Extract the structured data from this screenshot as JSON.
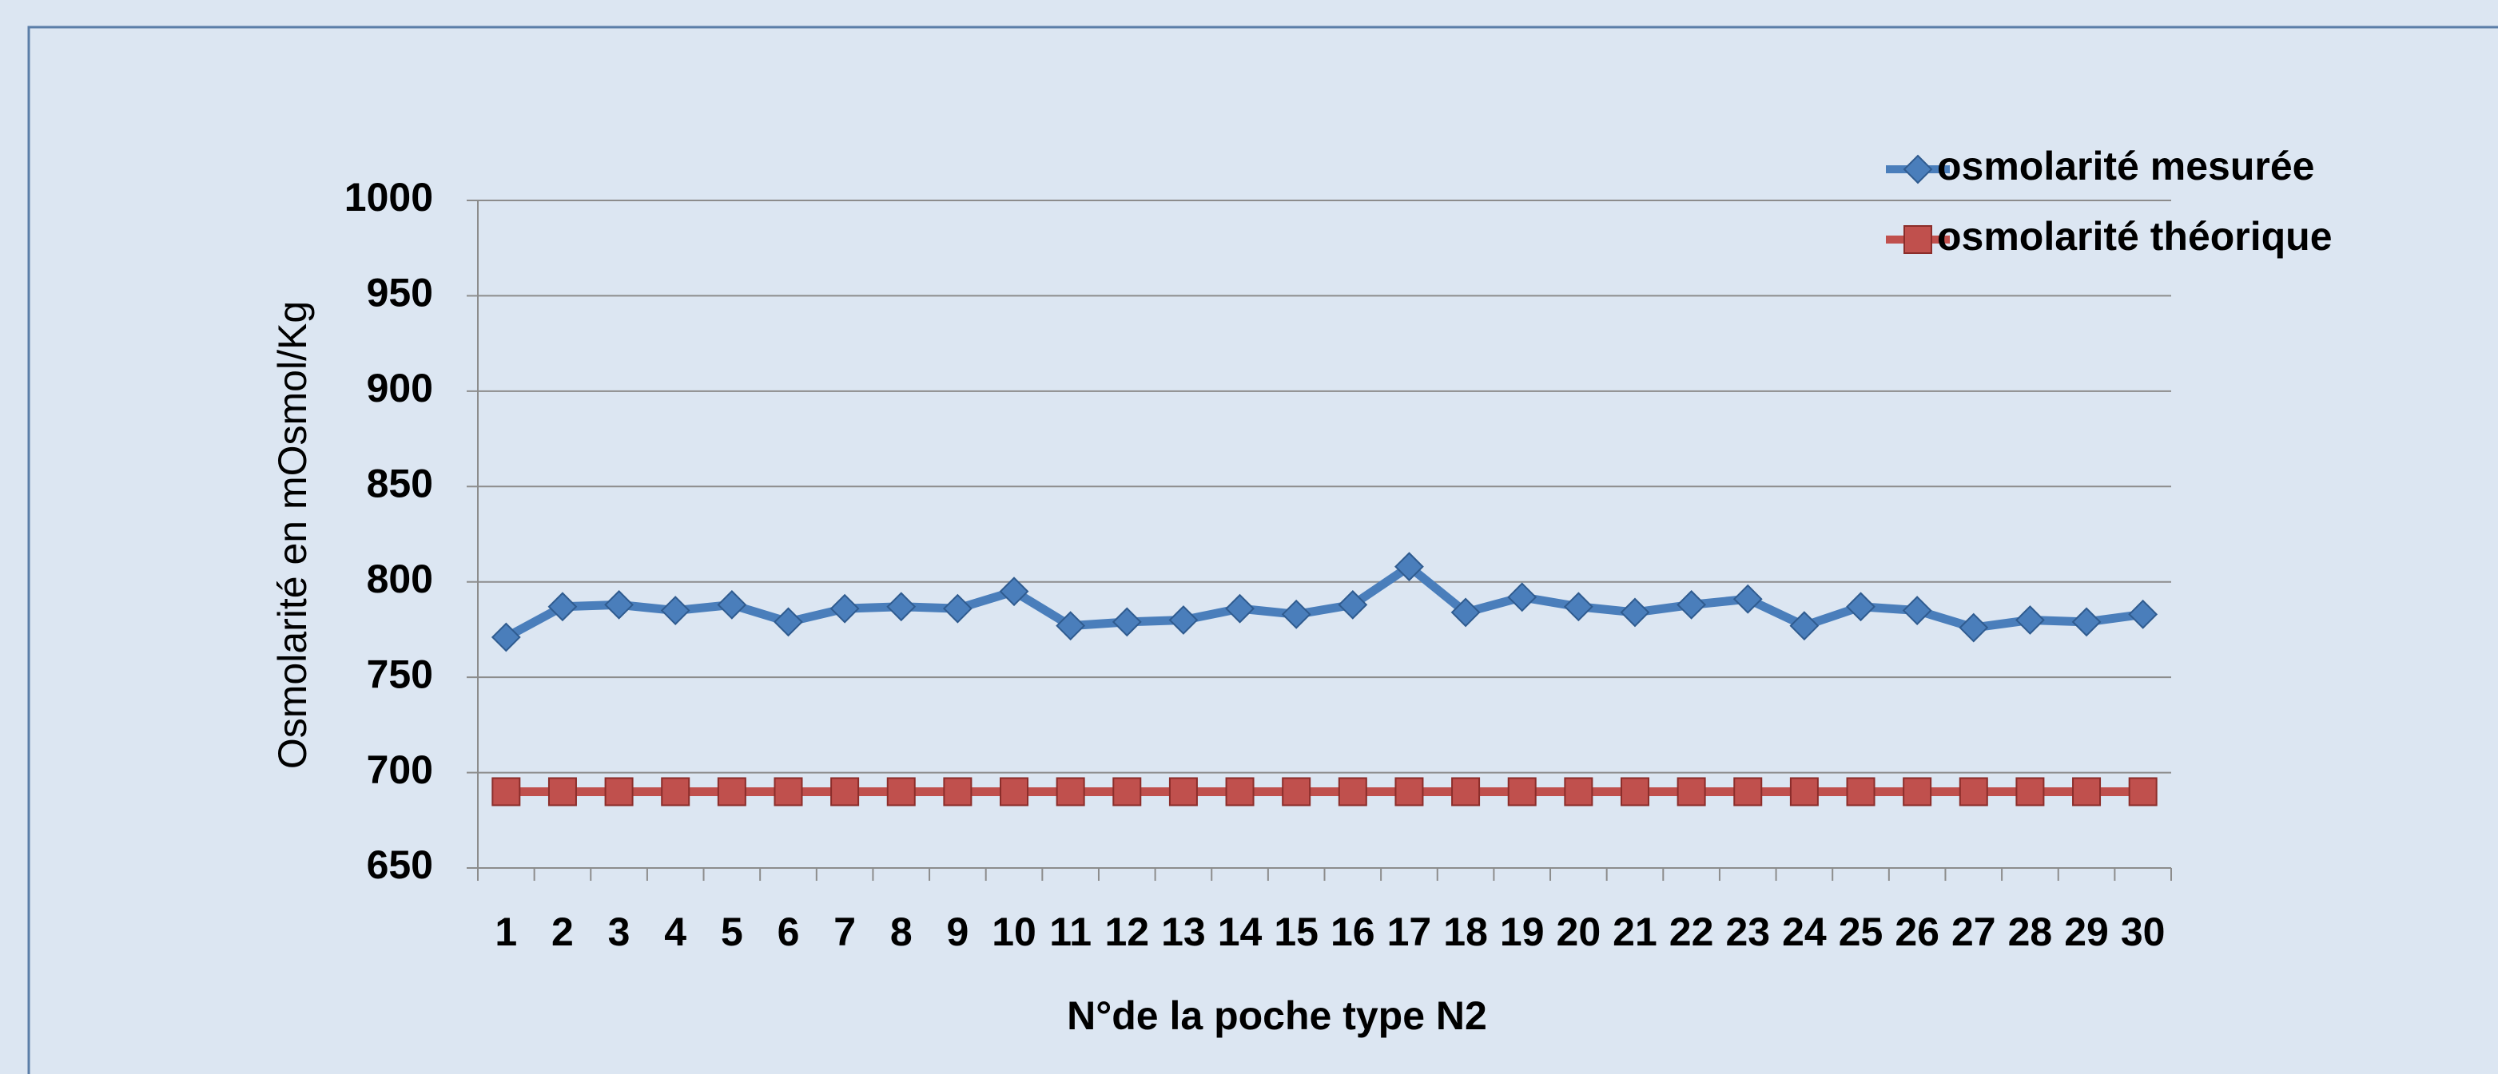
{
  "chart_data": {
    "type": "line",
    "x_label": "N°de la poche type N2",
    "y_label": "Osmolarité en mOsmol/Kg",
    "categories": [
      "1",
      "2",
      "3",
      "4",
      "5",
      "6",
      "7",
      "8",
      "9",
      "10",
      "11",
      "12",
      "13",
      "14",
      "15",
      "16",
      "17",
      "18",
      "19",
      "20",
      "21",
      "22",
      "23",
      "24",
      "25",
      "26",
      "27",
      "28",
      "29",
      "30"
    ],
    "series": [
      {
        "name": "osmolarité mesurée",
        "color": "#4a7ebb",
        "marker": "diamond",
        "values": [
          771,
          787,
          788,
          785,
          788,
          779,
          786,
          787,
          786,
          795,
          777,
          779,
          780,
          786,
          783,
          788,
          808,
          784,
          792,
          787,
          784,
          788,
          791,
          777,
          787,
          785,
          776,
          780,
          779,
          783
        ]
      },
      {
        "name": "osmolarité théorique",
        "color": "#c0504d",
        "marker": "square",
        "values": [
          690,
          690,
          690,
          690,
          690,
          690,
          690,
          690,
          690,
          690,
          690,
          690,
          690,
          690,
          690,
          690,
          690,
          690,
          690,
          690,
          690,
          690,
          690,
          690,
          690,
          690,
          690,
          690,
          690,
          690
        ]
      }
    ],
    "ylim": [
      650,
      1000
    ],
    "yticks": [
      650,
      700,
      750,
      800,
      850,
      900,
      950,
      1000
    ],
    "grid": true,
    "legend": "top-right"
  }
}
